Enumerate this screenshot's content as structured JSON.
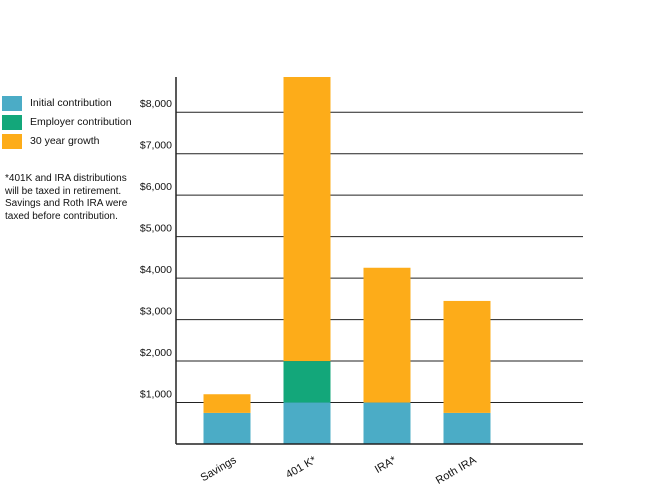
{
  "legend": {
    "items": [
      {
        "label": "Initial contribution",
        "color": "#4bacc6"
      },
      {
        "label": "Employer contribution",
        "color": "#13a77a"
      },
      {
        "label": "30 year growth",
        "color": "#fdac19"
      }
    ]
  },
  "note": "*401K and IRA distributions will be taxed in retirement. Savings and Roth IRA were taxed before contribution.",
  "chart_data": {
    "type": "bar",
    "stacked": true,
    "categories": [
      "Savings",
      "401 K*",
      "IRA*",
      "Roth IRA"
    ],
    "series": [
      {
        "name": "Initial contribution",
        "color": "#4bacc6",
        "values": [
          750,
          1000,
          1000,
          750
        ]
      },
      {
        "name": "Employer contribution",
        "color": "#13a77a",
        "values": [
          0,
          1000,
          0,
          0
        ]
      },
      {
        "name": "30 year growth",
        "color": "#fdac19",
        "values": [
          450,
          6850,
          3250,
          2700
        ]
      }
    ],
    "yticks": [
      {
        "value": 1000,
        "label": "$1,000"
      },
      {
        "value": 2000,
        "label": "$2,000"
      },
      {
        "value": 3000,
        "label": "$3,000"
      },
      {
        "value": 4000,
        "label": "$4,000"
      },
      {
        "value": 5000,
        "label": "$5,000"
      },
      {
        "value": 6000,
        "label": "$6,000"
      },
      {
        "value": 7000,
        "label": "$7,000"
      },
      {
        "value": 8000,
        "label": "$8,000"
      }
    ],
    "ylim": [
      0,
      8850
    ],
    "grid": true,
    "legend_position": "left"
  }
}
